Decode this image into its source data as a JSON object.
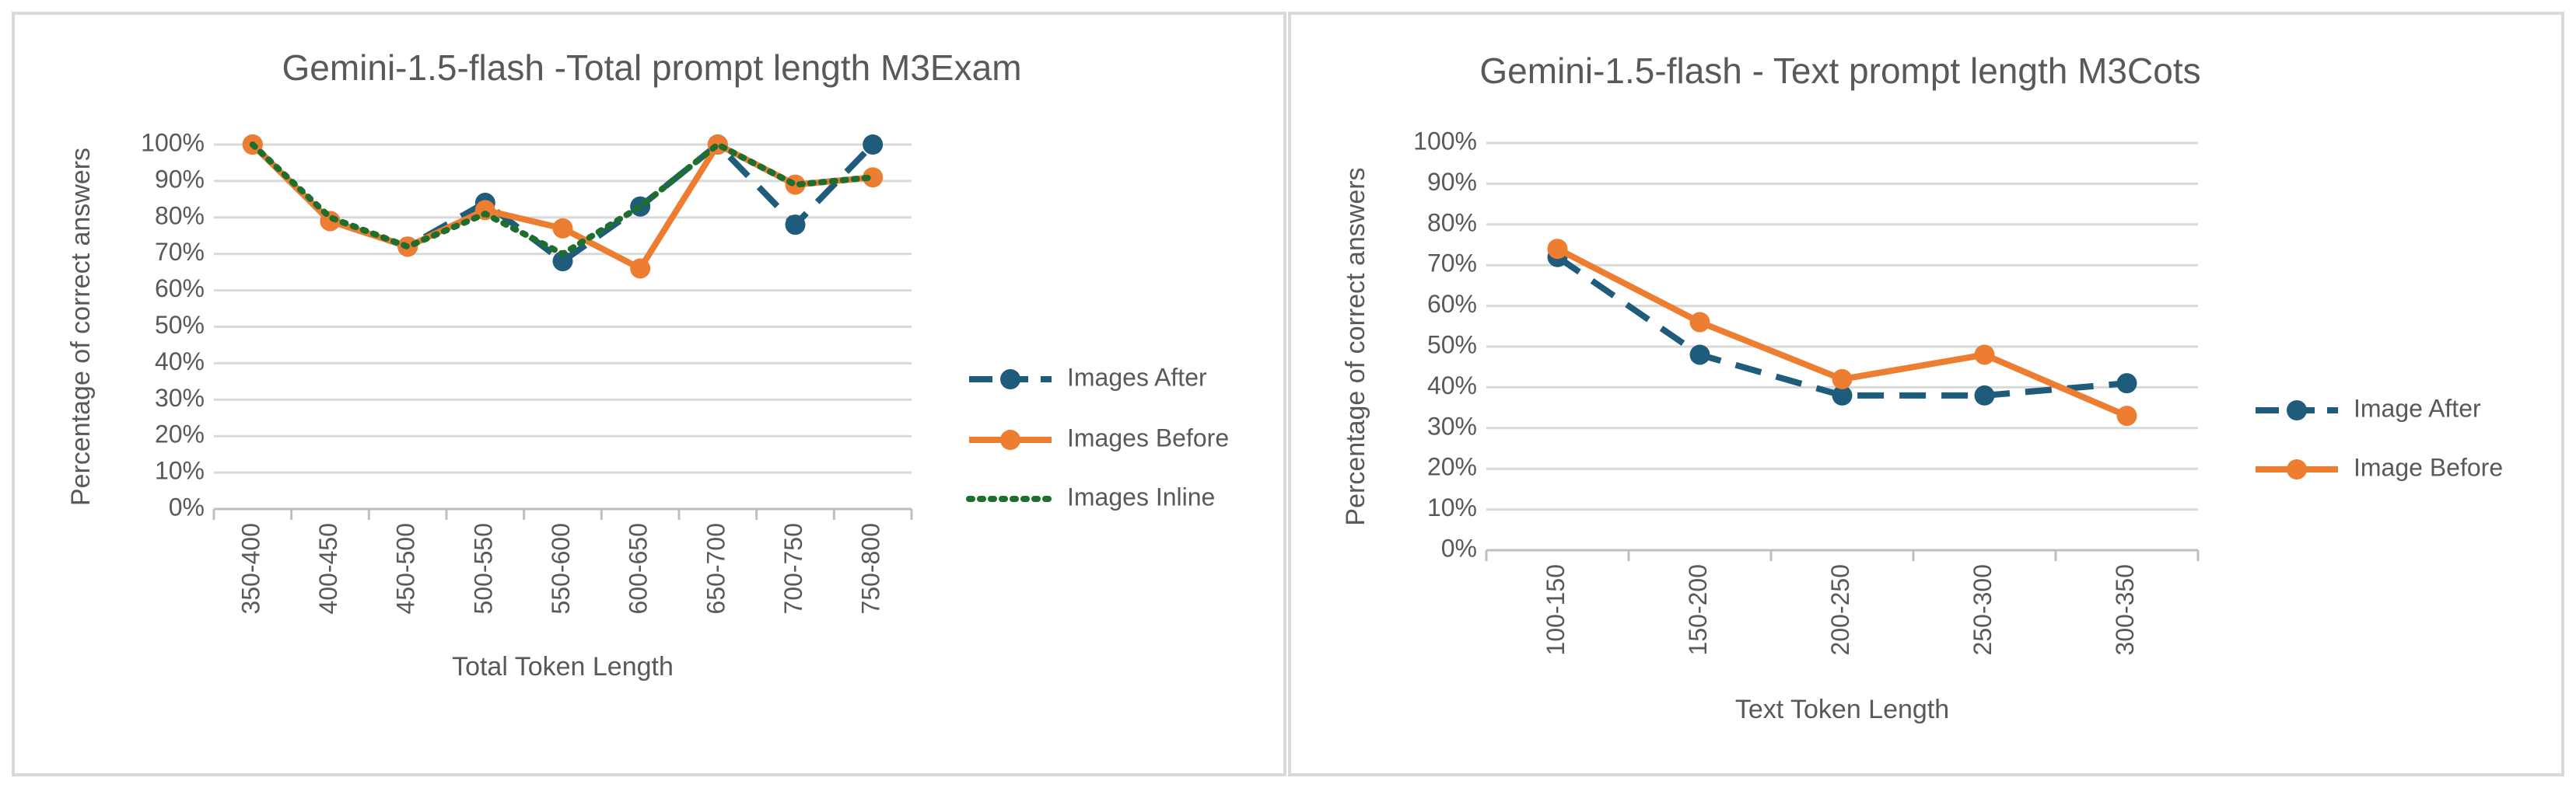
{
  "chart_data": [
    {
      "type": "line",
      "title": "Gemini-1.5-flash -Total prompt length M3Exam",
      "x_label": "Total Token Length",
      "y_label": "Percentage of correct answers",
      "categories": [
        "350-400",
        "400-450",
        "450-500",
        "500-550",
        "550-600",
        "600-650",
        "650-700",
        "700-750",
        "750-800"
      ],
      "series": [
        {
          "name": "Images After",
          "color": "#1f5b7a",
          "line_style": "dash",
          "marker": true,
          "values": [
            100,
            79,
            72,
            84,
            68,
            83,
            100,
            78,
            100
          ]
        },
        {
          "name": "Images Before",
          "color": "#ed7d31",
          "line_style": "solid",
          "marker": true,
          "values": [
            100,
            79,
            72,
            82,
            77,
            66,
            100,
            89,
            91
          ]
        },
        {
          "name": "Images Inline",
          "color": "#1e6e2e",
          "line_style": "dot",
          "marker": false,
          "values": [
            100,
            80,
            72,
            81,
            70,
            83,
            100,
            89,
            91
          ]
        }
      ],
      "ylim": [
        0,
        100
      ],
      "yticks": [
        {
          "value": 0,
          "label": "0%"
        },
        {
          "value": 10,
          "label": "10%"
        },
        {
          "value": 20,
          "label": "20%"
        },
        {
          "value": 30,
          "label": "30%"
        },
        {
          "value": 40,
          "label": "40%"
        },
        {
          "value": 50,
          "label": "50%"
        },
        {
          "value": 60,
          "label": "60%"
        },
        {
          "value": 70,
          "label": "70%"
        },
        {
          "value": 80,
          "label": "80%"
        },
        {
          "value": 90,
          "label": "90%"
        },
        {
          "value": 100,
          "label": "100%"
        }
      ],
      "grid": true,
      "legend": "right"
    },
    {
      "type": "line",
      "title": "Gemini-1.5-flash - Text prompt length M3Cots",
      "x_label": "Text Token Length",
      "y_label": "Percentage of correct answers",
      "categories": [
        "100-150",
        "150-200",
        "200-250",
        "250-300",
        "300-350"
      ],
      "series": [
        {
          "name": "Image After",
          "color": "#1f5b7a",
          "line_style": "dash",
          "marker": true,
          "values": [
            72,
            48,
            38,
            38,
            41
          ]
        },
        {
          "name": "Image Before",
          "color": "#ed7d31",
          "line_style": "solid",
          "marker": true,
          "values": [
            74,
            56,
            42,
            48,
            33
          ]
        }
      ],
      "ylim": [
        0,
        100
      ],
      "yticks": [
        {
          "value": 0,
          "label": "0%"
        },
        {
          "value": 10,
          "label": "10%"
        },
        {
          "value": 20,
          "label": "20%"
        },
        {
          "value": 30,
          "label": "30%"
        },
        {
          "value": 40,
          "label": "40%"
        },
        {
          "value": 50,
          "label": "50%"
        },
        {
          "value": 60,
          "label": "60%"
        },
        {
          "value": 70,
          "label": "70%"
        },
        {
          "value": 80,
          "label": "80%"
        },
        {
          "value": 90,
          "label": "90%"
        },
        {
          "value": 100,
          "label": "100%"
        }
      ],
      "grid": true,
      "legend": "right"
    }
  ]
}
